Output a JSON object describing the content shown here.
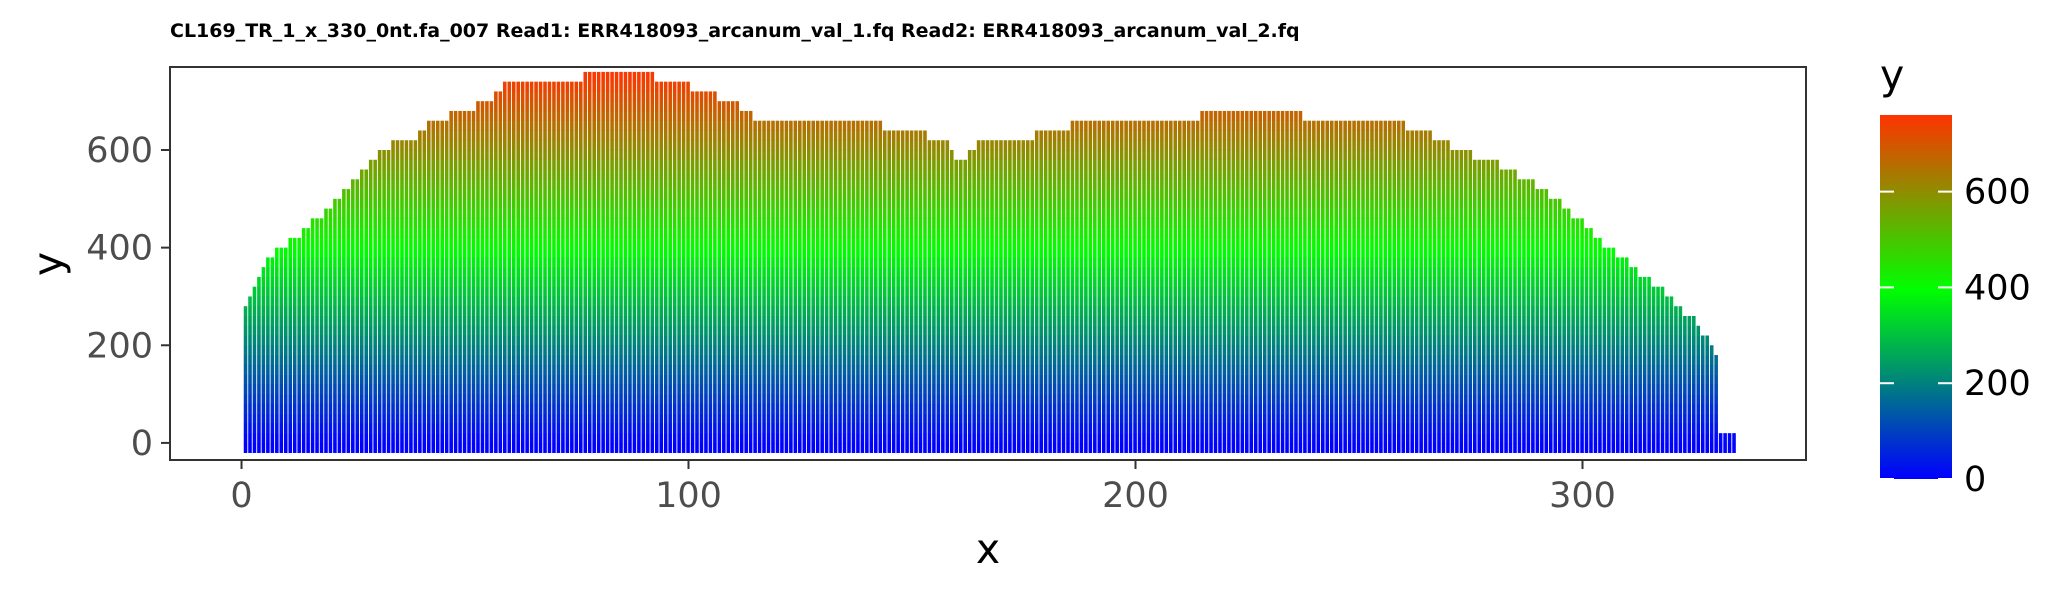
{
  "chart_data": {
    "type": "bar",
    "title": "CL169_TR_1_x_330_0nt.fa_007 Read1: ERR418093_arcanum_val_1.fq Read2: ERR418093_arcanum_val_2.fq",
    "xlabel": "x",
    "ylabel": "y",
    "xlim": [
      -16,
      350
    ],
    "ylim": [
      -35,
      770
    ],
    "xticks": [
      "0",
      "100",
      "200",
      "300"
    ],
    "yticks": [
      "0",
      "200",
      "400",
      "600"
    ],
    "grid": false,
    "legend": {
      "title": "y",
      "placement": "right",
      "labels": [
        "0",
        "200",
        "400",
        "600"
      ],
      "range": [
        0,
        760
      ],
      "colors": [
        "#0000ff",
        "#00ff00",
        "#ff3300"
      ]
    },
    "key_points": {
      "x": [
        1,
        2,
        3,
        4,
        5,
        6,
        7,
        9,
        11,
        13,
        15,
        17,
        19,
        21,
        23,
        25,
        27,
        29,
        31,
        34,
        40,
        43,
        50,
        55,
        58,
        60,
        70,
        84,
        92,
        100,
        110,
        113,
        117,
        120,
        128,
        140,
        146,
        150,
        155,
        158,
        160,
        165,
        173,
        178,
        190,
        200,
        210,
        220,
        235,
        240,
        250,
        260,
        265,
        270,
        280,
        290,
        300,
        306,
        312,
        318,
        322,
        325,
        328,
        330,
        331,
        332,
        334
      ],
      "y": [
        275,
        295,
        315,
        335,
        355,
        375,
        385,
        400,
        410,
        425,
        440,
        460,
        475,
        495,
        515,
        535,
        555,
        575,
        595,
        615,
        630,
        660,
        680,
        700,
        725,
        735,
        740,
        760,
        750,
        730,
        700,
        675,
        660,
        650,
        660,
        660,
        640,
        640,
        625,
        620,
        575,
        610,
        620,
        630,
        660,
        650,
        660,
        680,
        680,
        660,
        660,
        650,
        635,
        610,
        575,
        525,
        455,
        400,
        355,
        310,
        270,
        255,
        215,
        180,
        20,
        20,
        20
      ]
    }
  }
}
